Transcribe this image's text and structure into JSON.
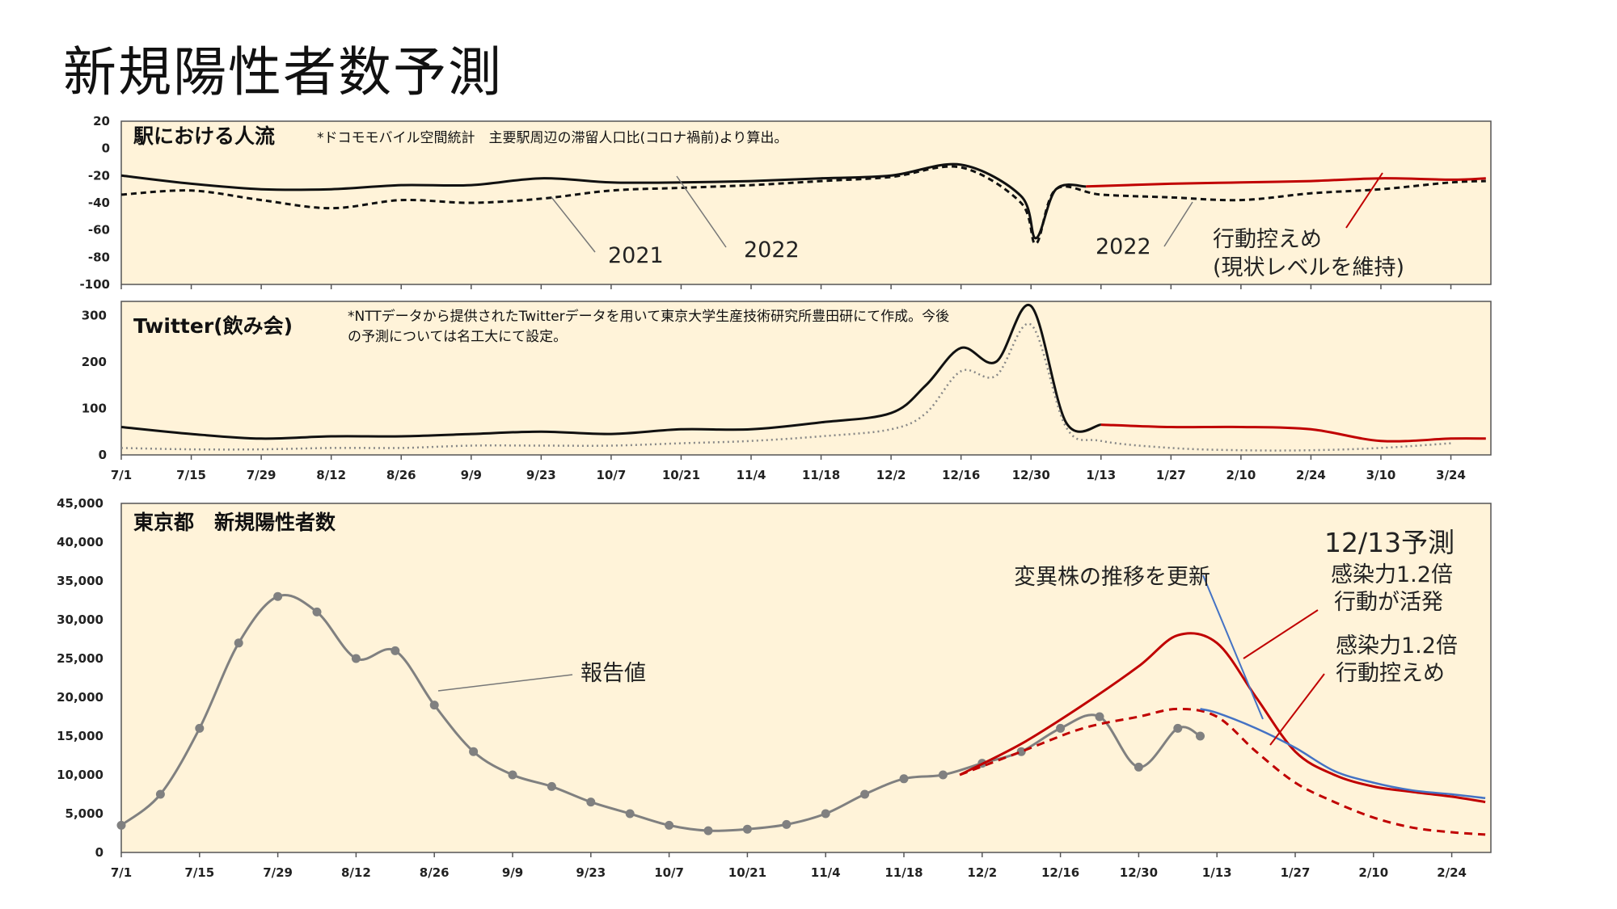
{
  "page": {
    "title": "新規陽性者数予測"
  },
  "chart_data": [
    {
      "id": "mobility",
      "type": "line",
      "title": "駅における人流",
      "note": "*ドコモモバイル空間統計　主要駅周辺の滞留人口比(コロナ禍前)より算出。",
      "ylim": [
        -100,
        20
      ],
      "yticks": [
        20,
        0,
        -20,
        -40,
        -60,
        -80,
        -100
      ],
      "x_range": [
        "2021-07-01",
        "2022-04-01"
      ],
      "series": [
        {
          "name": "2021",
          "style": "dashed",
          "color": "#111111",
          "x": [
            "7/1",
            "7/15",
            "7/29",
            "8/12",
            "8/26",
            "9/9",
            "9/23",
            "10/7",
            "10/21",
            "11/4",
            "11/18",
            "12/2",
            "12/16",
            "12/28",
            "12/31",
            "1/4",
            "1/13",
            "1/27",
            "2/10",
            "2/24",
            "3/10",
            "3/24",
            "3/31"
          ],
          "values": [
            -34,
            -31,
            -38,
            -44,
            -38,
            -40,
            -37,
            -31,
            -29,
            -27,
            -24,
            -21,
            -14,
            -40,
            -70,
            -30,
            -34,
            -36,
            -38,
            -33,
            -30,
            -25,
            -24
          ]
        },
        {
          "name": "2022",
          "style": "solid",
          "color": "#111111",
          "x": [
            "7/1",
            "7/15",
            "7/29",
            "8/12",
            "8/26",
            "9/9",
            "9/23",
            "10/7",
            "10/21",
            "11/4",
            "11/18",
            "12/2",
            "12/16",
            "12/28",
            "12/31",
            "1/4",
            "1/10"
          ],
          "values": [
            -20,
            -26,
            -30,
            -30,
            -27,
            -27,
            -22,
            -25,
            -25,
            -24,
            -22,
            -20,
            -12,
            -35,
            -66,
            -30,
            -28
          ]
        },
        {
          "name": "行動控えめ(現状レベルを維持)",
          "style": "solid",
          "color": "#c00000",
          "x": [
            "1/10",
            "1/27",
            "2/10",
            "2/24",
            "3/10",
            "3/24",
            "3/31"
          ],
          "values": [
            -28,
            -26,
            -25,
            -24,
            -22,
            -23,
            -22
          ]
        }
      ],
      "annotations": [
        "2021",
        "2022",
        "2022",
        "行動控えめ",
        "(現状レベルを維持)"
      ]
    },
    {
      "id": "twitter",
      "type": "line",
      "title": "Twitter(飲み会)",
      "note": [
        "*NTTデータから提供されたTwitterデータを用いて東京大学生産技術研究所豊田研にて作成。今後",
        "の予測については名工大にて設定。"
      ],
      "ylim": [
        0,
        330
      ],
      "yticks": [
        300,
        200,
        100,
        0
      ],
      "categories": [
        "7/1",
        "7/15",
        "7/29",
        "8/12",
        "8/26",
        "9/9",
        "9/23",
        "10/7",
        "10/21",
        "11/4",
        "11/18",
        "12/2",
        "12/16",
        "12/30",
        "1/13",
        "1/27",
        "2/10",
        "2/24",
        "3/10",
        "3/24"
      ],
      "series": [
        {
          "name": "solid",
          "color": "#111111",
          "x": [
            "7/1",
            "7/15",
            "7/29",
            "8/12",
            "8/26",
            "9/9",
            "9/23",
            "10/7",
            "10/21",
            "11/4",
            "11/18",
            "12/2",
            "12/9",
            "12/16",
            "12/23",
            "12/30",
            "1/6",
            "1/13"
          ],
          "values": [
            60,
            45,
            35,
            40,
            40,
            45,
            50,
            45,
            55,
            55,
            70,
            90,
            150,
            230,
            200,
            320,
            70,
            65
          ]
        },
        {
          "name": "dotted",
          "color": "#888888",
          "x": [
            "7/1",
            "7/15",
            "7/29",
            "8/12",
            "8/26",
            "9/9",
            "9/23",
            "10/7",
            "10/21",
            "11/4",
            "11/18",
            "12/2",
            "12/9",
            "12/16",
            "12/23",
            "12/30",
            "1/6",
            "1/13",
            "1/27",
            "2/10",
            "2/24",
            "3/10",
            "3/24"
          ],
          "values": [
            15,
            12,
            12,
            15,
            15,
            20,
            20,
            20,
            25,
            30,
            40,
            55,
            90,
            180,
            170,
            280,
            60,
            30,
            15,
            10,
            10,
            15,
            25
          ]
        },
        {
          "name": "forecast",
          "color": "#c00000",
          "x": [
            "1/13",
            "1/27",
            "2/10",
            "2/24",
            "3/10",
            "3/24",
            "3/31"
          ],
          "values": [
            65,
            60,
            60,
            55,
            30,
            35,
            35
          ]
        }
      ]
    },
    {
      "id": "cases",
      "type": "line",
      "title": "東京都　新規陽性者数",
      "ylim": [
        0,
        45000
      ],
      "yticks": [
        "45,000",
        "40,000",
        "35,000",
        "30,000",
        "25,000",
        "20,000",
        "15,000",
        "10,000",
        "5,000",
        "0"
      ],
      "categories": [
        "7/1",
        "7/15",
        "7/29",
        "8/12",
        "8/26",
        "9/9",
        "9/23",
        "10/7",
        "10/21",
        "11/4",
        "11/18",
        "12/2",
        "12/16",
        "12/30",
        "1/13",
        "1/27",
        "2/10",
        "2/24"
      ],
      "series": [
        {
          "name": "報告値",
          "type": "scatter+line",
          "color": "#808080",
          "x": [
            "7/1",
            "7/8",
            "7/15",
            "7/22",
            "7/29",
            "8/5",
            "8/12",
            "8/19",
            "8/26",
            "9/2",
            "9/9",
            "9/16",
            "9/23",
            "9/30",
            "10/7",
            "10/14",
            "10/21",
            "10/28",
            "11/4",
            "11/11",
            "11/18",
            "11/25",
            "12/2",
            "12/9",
            "12/16",
            "12/23",
            "12/30",
            "1/6",
            "1/10"
          ],
          "values": [
            3500,
            7500,
            16000,
            27000,
            33000,
            31000,
            25000,
            26000,
            19000,
            13000,
            10000,
            8500,
            6500,
            5000,
            3500,
            2800,
            3000,
            3600,
            5000,
            7500,
            9500,
            10000,
            11500,
            13000,
            16000,
            17500,
            11000,
            16000,
            15000
          ]
        },
        {
          "name": "感染力1.2倍 行動が活発",
          "color": "#c00000",
          "style": "solid",
          "x": [
            "11/28",
            "12/9",
            "12/20",
            "12/30",
            "1/6",
            "1/13",
            "1/20",
            "1/27",
            "2/3",
            "2/10",
            "2/17",
            "2/24",
            "3/2"
          ],
          "values": [
            10000,
            14000,
            19000,
            24000,
            28000,
            27000,
            20000,
            13000,
            10000,
            8500,
            7800,
            7200,
            6500
          ]
        },
        {
          "name": "感染力1.2倍 行動控えめ",
          "color": "#c00000",
          "style": "dashed",
          "x": [
            "11/28",
            "12/9",
            "12/20",
            "12/30",
            "1/6",
            "1/13",
            "1/20",
            "1/27",
            "2/3",
            "2/10",
            "2/17",
            "2/24",
            "3/2"
          ],
          "values": [
            10000,
            13000,
            16000,
            17500,
            18500,
            17500,
            13000,
            9000,
            6500,
            4500,
            3200,
            2600,
            2300
          ]
        },
        {
          "name": "変異株の推移を更新",
          "color": "#4472c4",
          "style": "solid",
          "x": [
            "1/10",
            "1/13",
            "1/20",
            "1/27",
            "2/3",
            "2/10",
            "2/17",
            "2/24",
            "3/2"
          ],
          "values": [
            18500,
            18000,
            16000,
            13500,
            10500,
            9000,
            8000,
            7500,
            7000
          ]
        }
      ],
      "annotations": [
        "報告値",
        "12/13予測",
        "感染力1.2倍",
        "行動が活発",
        "感染力1.2倍",
        "行動控えめ",
        "変異株の推移を更新"
      ]
    }
  ]
}
